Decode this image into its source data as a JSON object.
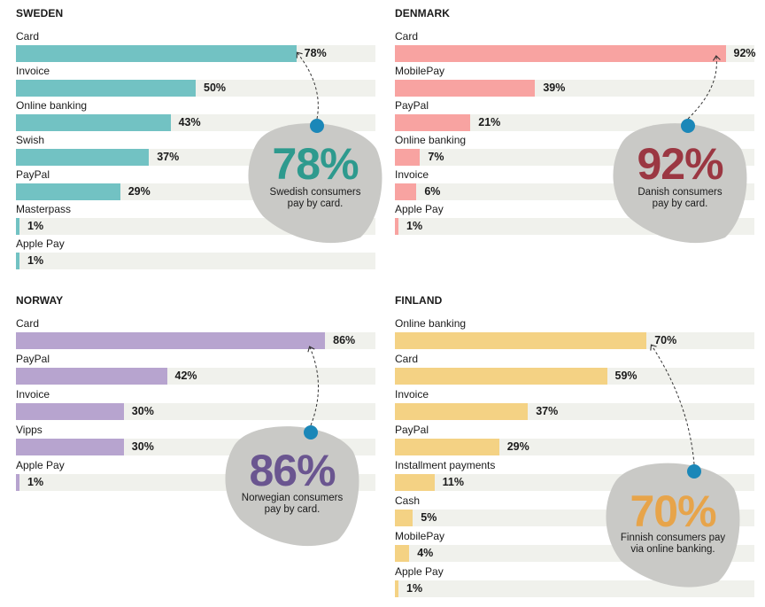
{
  "chart_data": [
    {
      "type": "bar",
      "orientation": "horizontal",
      "title": "SWEDEN",
      "categories": [
        "Card",
        "Invoice",
        "Online banking",
        "Swish",
        "PayPal",
        "Masterpass",
        "Apple Pay"
      ],
      "values": [
        78,
        50,
        43,
        37,
        29,
        1,
        1
      ],
      "value_labels": [
        "78%",
        "50%",
        "43%",
        "37%",
        "29%",
        "1%",
        "1%"
      ],
      "unit": "%",
      "xlim": [
        0,
        100
      ],
      "color": "#72c2c3",
      "callout": {
        "value": "78%",
        "text": [
          "Swedish consumers",
          "pay by card."
        ],
        "color": "#2e9a8e"
      }
    },
    {
      "type": "bar",
      "orientation": "horizontal",
      "title": "DENMARK",
      "categories": [
        "Card",
        "MobilePay",
        "PayPal",
        "Online banking",
        "Invoice",
        "Apple Pay"
      ],
      "values": [
        92,
        39,
        21,
        7,
        6,
        1
      ],
      "value_labels": [
        "92%",
        "39%",
        "21%",
        "7%",
        "6%",
        "1%"
      ],
      "unit": "%",
      "xlim": [
        0,
        100
      ],
      "color": "#f8a3a1",
      "callout": {
        "value": "92%",
        "text": [
          "Danish consumers",
          "pay by card."
        ],
        "color": "#9b3742"
      }
    },
    {
      "type": "bar",
      "orientation": "horizontal",
      "title": "NORWAY",
      "categories": [
        "Card",
        "PayPal",
        "Invoice",
        "Vipps",
        "Apple Pay"
      ],
      "values": [
        86,
        42,
        30,
        30,
        1
      ],
      "value_labels": [
        "86%",
        "42%",
        "30%",
        "30%",
        "1%"
      ],
      "unit": "%",
      "xlim": [
        0,
        100
      ],
      "color": "#b7a4cf",
      "callout": {
        "value": "86%",
        "text": [
          "Norwegian consumers",
          "pay by card."
        ],
        "color": "#6a5590"
      }
    },
    {
      "type": "bar",
      "orientation": "horizontal",
      "title": "FINLAND",
      "categories": [
        "Online banking",
        "Card",
        "Invoice",
        "PayPal",
        "Installment payments",
        "Cash",
        "MobilePay",
        "Apple Pay"
      ],
      "values": [
        70,
        59,
        37,
        29,
        11,
        5,
        4,
        1
      ],
      "value_labels": [
        "70%",
        "59%",
        "37%",
        "29%",
        "11%",
        "5%",
        "4%",
        "1%"
      ],
      "unit": "%",
      "xlim": [
        0,
        100
      ],
      "color": "#f4d284",
      "callout": {
        "value": "70%",
        "text": [
          "Finnish consumers pay",
          "via online banking."
        ],
        "color": "#e7a44a"
      }
    }
  ],
  "colors": {
    "track": "#f0f1ec",
    "blob": "#c9c9c6",
    "dot": "#1b87b8"
  }
}
